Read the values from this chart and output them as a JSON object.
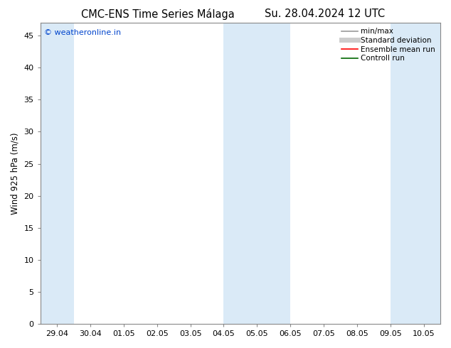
{
  "title_left": "CMC-ENS Time Series Málaga",
  "title_right": "Su. 28.04.2024 12 UTC",
  "ylabel": "Wind 925 hPa (m/s)",
  "watermark": "© weatheronline.in",
  "watermark_color": "#0044cc",
  "ylim": [
    0,
    47
  ],
  "yticks": [
    0,
    5,
    10,
    15,
    20,
    25,
    30,
    35,
    40,
    45
  ],
  "background_color": "#ffffff",
  "plot_bg_color": "#ffffff",
  "shade_color": "#daeaf7",
  "xtick_labels": [
    "29.04",
    "30.04",
    "01.05",
    "02.05",
    "03.05",
    "04.05",
    "05.05",
    "06.05",
    "07.05",
    "08.05",
    "09.05",
    "10.05"
  ],
  "shade_bands_labels": [
    [
      "29.04",
      "29.04+"
    ],
    [
      "04.05",
      "06.05"
    ],
    [
      "09.05",
      "10.05+"
    ]
  ],
  "legend_items": [
    {
      "label": "min/max",
      "color": "#999999",
      "lw": 1.2
    },
    {
      "label": "Standard deviation",
      "color": "#cccccc",
      "lw": 5
    },
    {
      "label": "Ensemble mean run",
      "color": "#ff0000",
      "lw": 1.2
    },
    {
      "label": "Controll run",
      "color": "#006600",
      "lw": 1.2
    }
  ],
  "title_fontsize": 10.5,
  "axis_fontsize": 8.5,
  "tick_fontsize": 8
}
